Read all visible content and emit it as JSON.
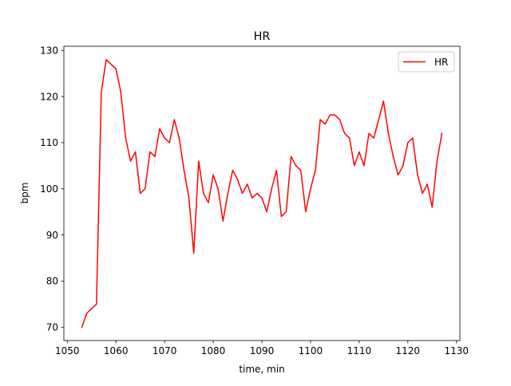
{
  "chart_data": {
    "type": "line",
    "title": "HR",
    "xlabel": "time, min",
    "ylabel": "bpm",
    "xlim": [
      1049.3,
      1130.7
    ],
    "ylim": [
      67.1,
      130.9
    ],
    "xticks": [
      1050,
      1060,
      1070,
      1080,
      1090,
      1100,
      1110,
      1120,
      1130
    ],
    "yticks": [
      70,
      80,
      90,
      100,
      110,
      120,
      130
    ],
    "grid": false,
    "legend_position": "top-right",
    "series": [
      {
        "name": "HR",
        "color": "#ff0000",
        "x": [
          1053,
          1054,
          1055,
          1056,
          1057,
          1058,
          1059,
          1060,
          1061,
          1062,
          1063,
          1064,
          1065,
          1066,
          1067,
          1068,
          1069,
          1070,
          1071,
          1072,
          1073,
          1074,
          1075,
          1076,
          1077,
          1078,
          1079,
          1080,
          1081,
          1082,
          1083,
          1084,
          1085,
          1086,
          1087,
          1088,
          1089,
          1090,
          1091,
          1092,
          1093,
          1094,
          1095,
          1096,
          1097,
          1098,
          1099,
          1100,
          1101,
          1102,
          1103,
          1104,
          1105,
          1106,
          1107,
          1108,
          1109,
          1110,
          1111,
          1112,
          1113,
          1114,
          1115,
          1116,
          1117,
          1118,
          1119,
          1120,
          1121,
          1122,
          1123,
          1124,
          1125,
          1126,
          1127
        ],
        "y": [
          70,
          73,
          74,
          75,
          121,
          128,
          127,
          126,
          121,
          111,
          106,
          108,
          99,
          100,
          108,
          107,
          113,
          111,
          110,
          115,
          111,
          104,
          98,
          86,
          106,
          99,
          97,
          103,
          100,
          93,
          99,
          104,
          102,
          99,
          101,
          98,
          99,
          98,
          95,
          100,
          104,
          94,
          95,
          107,
          105,
          104,
          95,
          100,
          104,
          115,
          114,
          116,
          116,
          115,
          112,
          111,
          105,
          108,
          105,
          112,
          111,
          115,
          119,
          112,
          107,
          103,
          105,
          110,
          111,
          103,
          99,
          101,
          96,
          106,
          112
        ]
      }
    ]
  }
}
